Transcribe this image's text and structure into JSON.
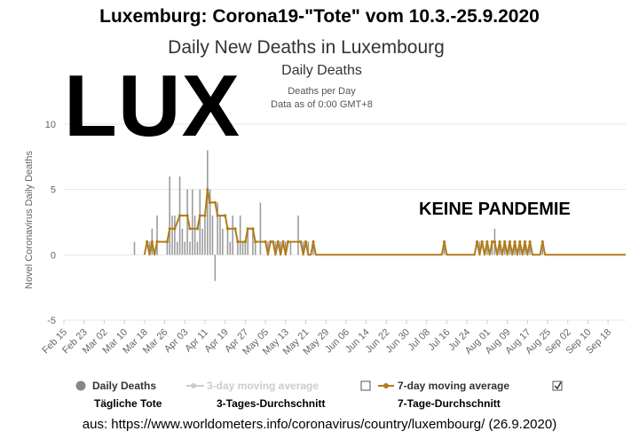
{
  "header": {
    "title": "Luxemburg: Corona19-\"Tote\" vom 10.3.-25.9.2020",
    "subtitle": "Daily New Deaths in Luxembourg",
    "overlay_text": "LUX",
    "annotation": "KEINE PANDEMIE"
  },
  "legend": {
    "items": [
      {
        "label": "Daily Deaths",
        "translation": "Tägliche Tote"
      },
      {
        "label": "3-day moving average",
        "translation": "3-Tages-Durchschnitt"
      },
      {
        "label": "7-day moving average",
        "translation": "7-Tage-Durchschnitt"
      }
    ]
  },
  "source": "aus: https://www.worldometers.info/coronavirus/country/luxembourg/ (26.9.2020)",
  "colors": {
    "bars": "#9a9a9a",
    "moving_average_7": "#b07d1a",
    "moving_average_3_disabled": "#cccccc",
    "grid": "#e6e6e6"
  },
  "chart_data": {
    "type": "bar",
    "title": "Daily Deaths",
    "subtitle_lines": [
      "Deaths per Day",
      "Data as of 0:00 GMT+8"
    ],
    "ylabel": "Novel Coronavirus Daily Deaths",
    "xlabel": "",
    "ylim": [
      -5,
      10
    ],
    "yticks": [
      -5,
      0,
      5,
      10
    ],
    "xlim": [
      "2020-02-15",
      "2020-09-25"
    ],
    "xticks": [
      "Feb 15",
      "Feb 23",
      "Mar 02",
      "Mar 10",
      "Mar 18",
      "Mar 26",
      "Apr 03",
      "Apr 11",
      "Apr 19",
      "Apr 27",
      "May 05",
      "May 13",
      "May 21",
      "May 29",
      "Jun 06",
      "Jun 14",
      "Jun 22",
      "Jun 30",
      "Jul 08",
      "Jul 16",
      "Jul 24",
      "Aug 01",
      "Aug 09",
      "Aug 17",
      "Aug 25",
      "Sep 02",
      "Sep 10",
      "Sep 18"
    ],
    "grid": true,
    "legend_position": "bottom",
    "series": [
      {
        "name": "Daily Deaths",
        "type": "bar",
        "points": [
          [
            "2020-03-14",
            1
          ],
          [
            "2020-03-20",
            1
          ],
          [
            "2020-03-21",
            2
          ],
          [
            "2020-03-23",
            3
          ],
          [
            "2020-03-27",
            1
          ],
          [
            "2020-03-28",
            6
          ],
          [
            "2020-03-29",
            3
          ],
          [
            "2020-03-30",
            3
          ],
          [
            "2020-03-31",
            1
          ],
          [
            "2020-04-01",
            6
          ],
          [
            "2020-04-02",
            2
          ],
          [
            "2020-04-03",
            1
          ],
          [
            "2020-04-04",
            5
          ],
          [
            "2020-04-05",
            1
          ],
          [
            "2020-04-06",
            5
          ],
          [
            "2020-04-07",
            3
          ],
          [
            "2020-04-08",
            1
          ],
          [
            "2020-04-09",
            5
          ],
          [
            "2020-04-10",
            2
          ],
          [
            "2020-04-11",
            3
          ],
          [
            "2020-04-12",
            8
          ],
          [
            "2020-04-13",
            5
          ],
          [
            "2020-04-14",
            3
          ],
          [
            "2020-04-15",
            -2
          ],
          [
            "2020-04-16",
            4
          ],
          [
            "2020-04-17",
            3
          ],
          [
            "2020-04-18",
            2
          ],
          [
            "2020-04-20",
            2
          ],
          [
            "2020-04-21",
            1
          ],
          [
            "2020-04-22",
            3
          ],
          [
            "2020-04-24",
            1
          ],
          [
            "2020-04-25",
            3
          ],
          [
            "2020-04-26",
            1
          ],
          [
            "2020-04-27",
            1
          ],
          [
            "2020-04-28",
            2
          ],
          [
            "2020-04-30",
            2
          ],
          [
            "2020-05-01",
            1
          ],
          [
            "2020-05-03",
            4
          ],
          [
            "2020-05-06",
            1
          ],
          [
            "2020-05-09",
            1
          ],
          [
            "2020-05-11",
            1
          ],
          [
            "2020-05-13",
            1
          ],
          [
            "2020-05-15",
            1
          ],
          [
            "2020-05-18",
            3
          ],
          [
            "2020-05-20",
            1
          ],
          [
            "2020-05-22",
            1
          ],
          [
            "2020-05-24",
            1
          ],
          [
            "2020-07-15",
            1
          ],
          [
            "2020-07-29",
            1
          ],
          [
            "2020-08-01",
            1
          ],
          [
            "2020-08-03",
            1
          ],
          [
            "2020-08-04",
            2
          ],
          [
            "2020-08-06",
            1
          ],
          [
            "2020-08-08",
            1
          ],
          [
            "2020-08-10",
            1
          ],
          [
            "2020-08-12",
            1
          ],
          [
            "2020-08-14",
            1
          ],
          [
            "2020-08-16",
            1
          ],
          [
            "2020-08-18",
            1
          ],
          [
            "2020-08-23",
            1
          ]
        ]
      },
      {
        "name": "7-day moving average",
        "type": "line",
        "points": [
          [
            "2020-03-18",
            0
          ],
          [
            "2020-03-19",
            1
          ],
          [
            "2020-03-20",
            0
          ],
          [
            "2020-03-21",
            1
          ],
          [
            "2020-03-22",
            0
          ],
          [
            "2020-03-23",
            1
          ],
          [
            "2020-03-27",
            1
          ],
          [
            "2020-03-28",
            2
          ],
          [
            "2020-03-30",
            2
          ],
          [
            "2020-04-01",
            3
          ],
          [
            "2020-04-04",
            3
          ],
          [
            "2020-04-05",
            2
          ],
          [
            "2020-04-08",
            2
          ],
          [
            "2020-04-09",
            3
          ],
          [
            "2020-04-11",
            3
          ],
          [
            "2020-04-12",
            5
          ],
          [
            "2020-04-13",
            4
          ],
          [
            "2020-04-15",
            4
          ],
          [
            "2020-04-16",
            3
          ],
          [
            "2020-04-19",
            3
          ],
          [
            "2020-04-20",
            2
          ],
          [
            "2020-04-23",
            2
          ],
          [
            "2020-04-24",
            1
          ],
          [
            "2020-04-27",
            1
          ],
          [
            "2020-04-28",
            2
          ],
          [
            "2020-04-30",
            2
          ],
          [
            "2020-05-01",
            1
          ],
          [
            "2020-05-05",
            1
          ],
          [
            "2020-05-06",
            0
          ],
          [
            "2020-05-07",
            1
          ],
          [
            "2020-05-08",
            1
          ],
          [
            "2020-05-09",
            0
          ],
          [
            "2020-05-10",
            1
          ],
          [
            "2020-05-11",
            0
          ],
          [
            "2020-05-12",
            1
          ],
          [
            "2020-05-13",
            0
          ],
          [
            "2020-05-14",
            1
          ],
          [
            "2020-05-19",
            1
          ],
          [
            "2020-05-20",
            0
          ],
          [
            "2020-05-21",
            1
          ],
          [
            "2020-05-22",
            0
          ],
          [
            "2020-05-23",
            0
          ],
          [
            "2020-05-24",
            1
          ],
          [
            "2020-05-25",
            0
          ],
          [
            "2020-07-14",
            0
          ],
          [
            "2020-07-15",
            1
          ],
          [
            "2020-07-16",
            0
          ],
          [
            "2020-07-27",
            0
          ],
          [
            "2020-07-28",
            1
          ],
          [
            "2020-07-29",
            0
          ],
          [
            "2020-07-30",
            1
          ],
          [
            "2020-07-31",
            0
          ],
          [
            "2020-08-01",
            1
          ],
          [
            "2020-08-02",
            0
          ],
          [
            "2020-08-03",
            1
          ],
          [
            "2020-08-04",
            1
          ],
          [
            "2020-08-05",
            0
          ],
          [
            "2020-08-06",
            1
          ],
          [
            "2020-08-07",
            0
          ],
          [
            "2020-08-08",
            1
          ],
          [
            "2020-08-09",
            0
          ],
          [
            "2020-08-10",
            1
          ],
          [
            "2020-08-11",
            0
          ],
          [
            "2020-08-12",
            1
          ],
          [
            "2020-08-13",
            0
          ],
          [
            "2020-08-14",
            1
          ],
          [
            "2020-08-15",
            0
          ],
          [
            "2020-08-16",
            1
          ],
          [
            "2020-08-17",
            0
          ],
          [
            "2020-08-18",
            1
          ],
          [
            "2020-08-19",
            0
          ],
          [
            "2020-08-22",
            0
          ],
          [
            "2020-08-23",
            1
          ],
          [
            "2020-08-24",
            0
          ],
          [
            "2020-09-25",
            0
          ]
        ]
      }
    ]
  }
}
